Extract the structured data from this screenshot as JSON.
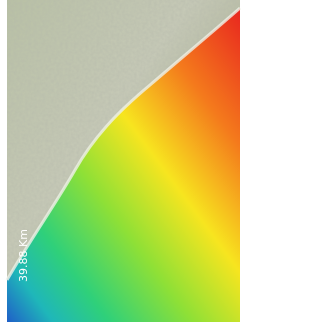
{
  "image": {
    "scale_label": "39.88 Km"
  }
}
